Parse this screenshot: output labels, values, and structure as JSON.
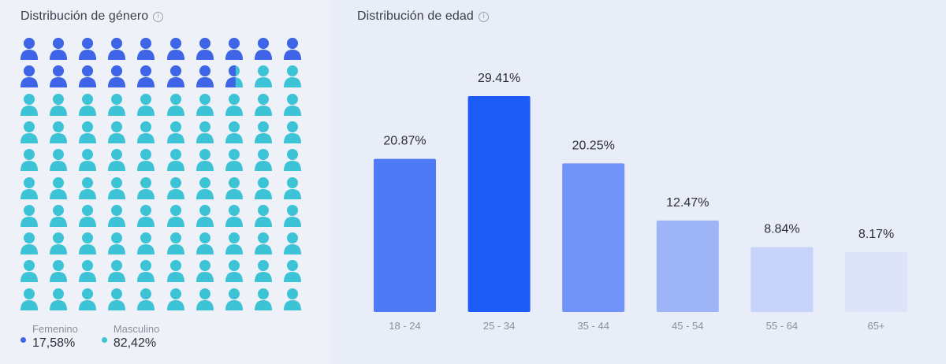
{
  "gender": {
    "title": "Distribución de género",
    "info_icon": "info-icon",
    "legend": [
      {
        "label": "Femenino",
        "value": "17,58%",
        "color": "#3f64e8"
      },
      {
        "label": "Masculino",
        "value": "82,42%",
        "color": "#3cc3d6"
      }
    ]
  },
  "age": {
    "title": "Distribución de edad",
    "info_icon": "info-icon"
  },
  "chart_data": [
    {
      "type": "pictogram",
      "total_icons": 100,
      "categories": [
        "Femenino",
        "Masculino"
      ],
      "values": [
        17.58,
        82.42
      ],
      "colors": [
        "#3f64e8",
        "#3cc3d6"
      ]
    },
    {
      "type": "bar",
      "title": "Distribución de edad",
      "categories": [
        "18 - 24",
        "25 - 34",
        "35 - 44",
        "45 - 54",
        "55 - 64",
        "65+"
      ],
      "values": [
        20.87,
        29.41,
        20.25,
        12.47,
        8.84,
        8.17
      ],
      "labels": [
        "20.87%",
        "29.41%",
        "20.25%",
        "12.47%",
        "8.84%",
        "8.17%"
      ],
      "colors": [
        "#4e7bf5",
        "#1d5bf7",
        "#6f93f6",
        "#9db5f6",
        "#c7d3f8",
        "#dde3f8"
      ],
      "ylim": [
        0,
        29.41
      ],
      "grid": false
    }
  ]
}
